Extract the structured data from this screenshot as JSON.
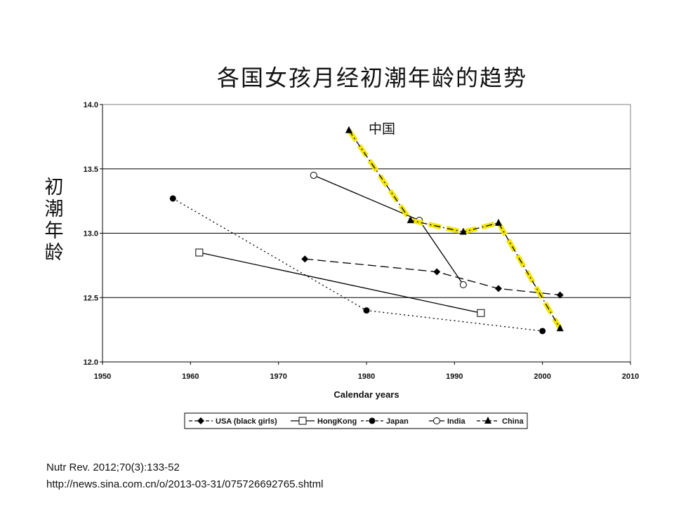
{
  "page": {
    "title": "各国女孩月经初潮年龄的趋势",
    "ylabel_chars": [
      "初",
      "潮",
      "年",
      "龄"
    ],
    "references": [
      "Nutr Rev. 2012;70(3):133-52",
      "http://news.sina.com.cn/o/2013-03-31/075726692765.shtml"
    ]
  },
  "chart_data": {
    "type": "line",
    "title": "各国女孩月经初潮年龄的趋势",
    "xlabel": "Calendar years",
    "ylabel": "初潮年龄",
    "xlim": [
      1950,
      2010
    ],
    "ylim": [
      12.0,
      14.0
    ],
    "x_ticks": [
      1950,
      1960,
      1970,
      1980,
      1990,
      2000,
      2010
    ],
    "y_ticks": [
      12.0,
      12.5,
      13.0,
      13.5,
      14.0
    ],
    "x_tick_labels": [
      "1950",
      "1960",
      "1970",
      "1980",
      "1990",
      "2000",
      "2010"
    ],
    "y_tick_labels": [
      "12.0",
      "12.5",
      "13.0",
      "13.5",
      "14.0"
    ],
    "horizontal_gridlines": true,
    "legend_position": "bottom",
    "annotation": "中国",
    "highlight": {
      "series": "China",
      "color": "#f2e600",
      "style": "dashed"
    },
    "series": [
      {
        "name": "USA (black girls)",
        "marker": "diamond",
        "line": "long-dash",
        "x": [
          1973,
          1988,
          1995,
          2002
        ],
        "y": [
          12.8,
          12.7,
          12.57,
          12.52
        ]
      },
      {
        "name": "HongKong",
        "marker": "open-square",
        "line": "solid",
        "x": [
          1961,
          1993
        ],
        "y": [
          12.85,
          12.38
        ]
      },
      {
        "name": "Japan",
        "marker": "filled-circle",
        "line": "dotted",
        "x": [
          1958,
          1980,
          2000
        ],
        "y": [
          13.27,
          12.4,
          12.24
        ]
      },
      {
        "name": "India",
        "marker": "open-circle",
        "line": "solid",
        "x": [
          1974,
          1986,
          1991
        ],
        "y": [
          13.45,
          13.1,
          12.6
        ]
      },
      {
        "name": "China",
        "marker": "filled-triangle",
        "line": "dash-dot",
        "x": [
          1978,
          1985,
          1991,
          1995,
          2002
        ],
        "y": [
          13.8,
          13.1,
          13.01,
          13.08,
          12.26
        ]
      }
    ]
  }
}
